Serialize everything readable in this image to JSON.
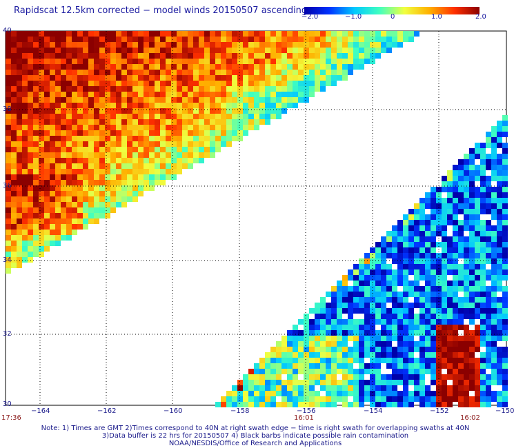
{
  "title": "Rapidscat 12.5km corrected − model winds 20150507 ascending",
  "colorbar": {
    "ticks": [
      "−2.0",
      "−1.0",
      "0",
      "1.0",
      "2.0"
    ],
    "range": [
      -2.0,
      2.0
    ],
    "colors": [
      "#0000aa",
      "#0033ff",
      "#00c8ff",
      "#40ffc0",
      "#f0ff40",
      "#ffb000",
      "#ff3000",
      "#8b0000"
    ]
  },
  "map": {
    "lat_range": [
      30,
      40
    ],
    "lon_range": [
      -165,
      -150
    ],
    "lat_labels": [
      "40",
      "38",
      "36",
      "34",
      "32",
      "30"
    ],
    "lon_labels": [
      "−164",
      "−162",
      "−160",
      "−158",
      "−156",
      "−154",
      "−152",
      "−150"
    ],
    "time_labels": [
      "17:36",
      "16:01",
      "16:02"
    ]
  },
  "notes": [
    "Note: 1) Times are GMT 2)Times correspond to 40N at right swath edge − time is right swath for overlapping swaths at 40N",
    "3)Data buffer is 22 hrs for 20150507 4) Black barbs indicate possible rain contamination",
    "NOAA/NESDIS/Office of Research and Applications"
  ]
}
